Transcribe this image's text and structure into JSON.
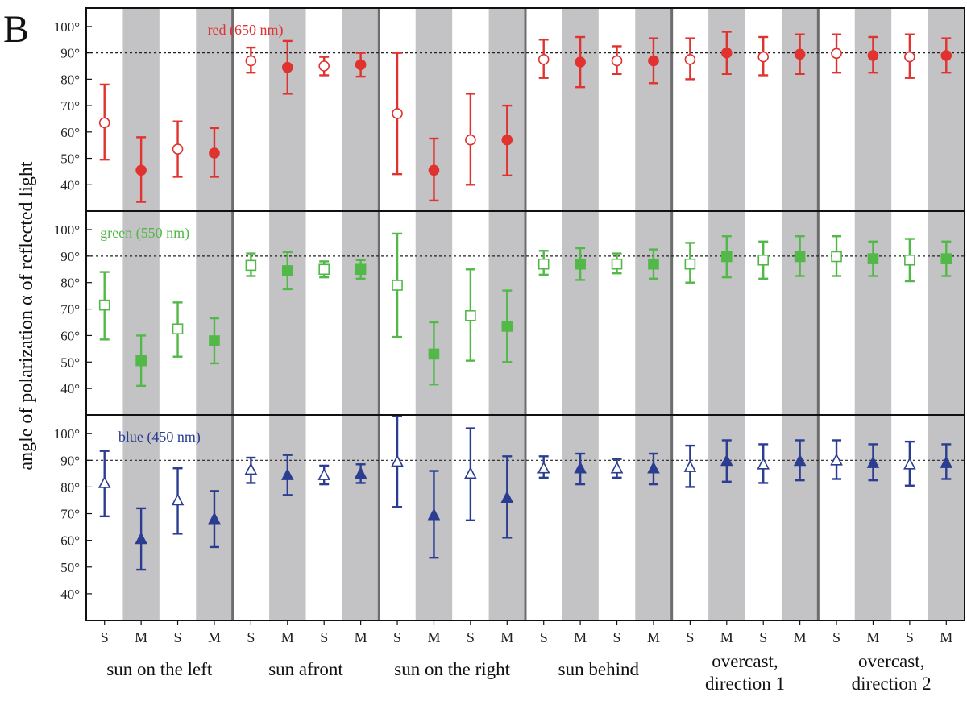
{
  "panel_label": "B",
  "colors": {
    "red": "#e0322e",
    "green": "#52b848",
    "blue": "#2b3d91",
    "shade": "#c3c3c5",
    "frame": "#111111",
    "divider": "#6d6d6f"
  },
  "chart_data": {
    "type": "scatter",
    "ylabel": "angle of polarization α of reflected light",
    "ylim": [
      30,
      107
    ],
    "yticks": [
      "40°",
      "50°",
      "60°",
      "70°",
      "80°",
      "90°",
      "100°"
    ],
    "ytick_values": [
      40,
      50,
      60,
      70,
      80,
      90,
      100
    ],
    "reference_line": 90,
    "x_categories": [
      "S",
      "M",
      "S",
      "M",
      "S",
      "M",
      "S",
      "M",
      "S",
      "M",
      "S",
      "M",
      "S",
      "M",
      "S",
      "M",
      "S",
      "M",
      "S",
      "M",
      "S",
      "M",
      "S",
      "M"
    ],
    "groups": [
      {
        "label_lines": [
          "sun on the left"
        ]
      },
      {
        "label_lines": [
          "sun afront"
        ]
      },
      {
        "label_lines": [
          "sun on the right"
        ]
      },
      {
        "label_lines": [
          "sun behind"
        ]
      },
      {
        "label_lines": [
          "overcast,",
          "direction 1"
        ]
      },
      {
        "label_lines": [
          "overcast,",
          "direction 2"
        ]
      }
    ],
    "shaded_columns": "M",
    "series": [
      {
        "name": "red (650 nm)",
        "color": "#e0322e",
        "marker": "circle",
        "marker_fill_M": "filled",
        "marker_fill_S": "open",
        "mean": [
          63.5,
          45.5,
          53.5,
          52,
          87,
          84.5,
          85,
          85.5,
          67,
          45.5,
          57,
          57,
          87.5,
          86.5,
          87,
          87,
          87.5,
          90,
          88.5,
          89.5,
          89.8,
          89,
          88.5,
          89
        ],
        "upper": [
          78,
          58,
          64,
          61.5,
          92,
          94.5,
          88.5,
          90,
          90,
          57.5,
          74.5,
          70,
          95,
          96,
          92.5,
          95.5,
          95.5,
          98,
          96,
          97,
          97,
          96,
          97,
          95.5
        ],
        "lower": [
          49.5,
          33.5,
          43,
          43,
          82.5,
          74.5,
          81.5,
          81,
          44,
          34,
          40,
          43.5,
          80.5,
          77,
          82,
          78.5,
          80,
          82,
          81.5,
          82,
          82.5,
          82.5,
          80.5,
          82.5
        ]
      },
      {
        "name": "green (550 nm)",
        "color": "#52b848",
        "marker": "square",
        "marker_fill_M": "filled",
        "marker_fill_S": "open",
        "mean": [
          71.5,
          50.5,
          62.5,
          58,
          86.5,
          84.5,
          85,
          85,
          79,
          53,
          67.5,
          63.5,
          87,
          87,
          87,
          87,
          87,
          89.8,
          88.5,
          89.8,
          89.8,
          89,
          88.5,
          89
        ],
        "upper": [
          84,
          60,
          72.5,
          66.5,
          91,
          91.5,
          88,
          88.5,
          98.5,
          65,
          85,
          77,
          92,
          93,
          91,
          92.5,
          95,
          97.5,
          95.5,
          97.5,
          97.5,
          95.5,
          96.5,
          95.5
        ],
        "lower": [
          58.5,
          41,
          52,
          49.5,
          82.5,
          77.5,
          82,
          81.5,
          59.5,
          41.5,
          50.5,
          50,
          83,
          81,
          83.5,
          81.5,
          80,
          82,
          81.5,
          82.5,
          82.5,
          82.5,
          80.5,
          82.5
        ]
      },
      {
        "name": "blue (450 nm)",
        "color": "#2b3d91",
        "marker": "triangle",
        "marker_fill_M": "filled",
        "marker_fill_S": "open",
        "mean": [
          81.5,
          60.5,
          75,
          68,
          86.5,
          84.5,
          84.5,
          85,
          89.5,
          69.5,
          85,
          76,
          87,
          87,
          87,
          87,
          87.5,
          89.8,
          88.5,
          89.8,
          90,
          89,
          88.5,
          89
        ],
        "upper": [
          93.5,
          72,
          87,
          78.5,
          91,
          92,
          88,
          88.5,
          106.5,
          86,
          102,
          91.5,
          91.5,
          92.5,
          90.5,
          92.5,
          95.5,
          97.5,
          96,
          97.5,
          97.5,
          96,
          97,
          96
        ],
        "lower": [
          69,
          49,
          62.5,
          57.5,
          81.5,
          77,
          81,
          81.5,
          72.5,
          53.5,
          67.5,
          61,
          83.5,
          81,
          83.5,
          81,
          80,
          82,
          81.5,
          82.5,
          83,
          82.5,
          80.5,
          83
        ]
      }
    ]
  }
}
